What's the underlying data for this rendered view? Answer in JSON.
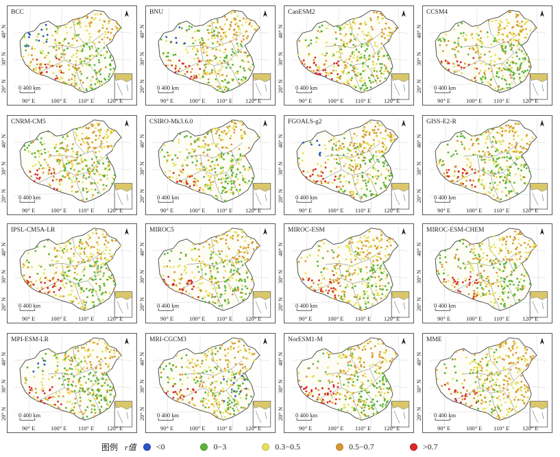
{
  "panels": [
    {
      "label": "BCC"
    },
    {
      "label": "BNU"
    },
    {
      "label": "CanESM2"
    },
    {
      "label": "CCSM4"
    },
    {
      "label": "CNRM-CM5"
    },
    {
      "label": "CSIRO-Mk3.6.0"
    },
    {
      "label": "FGOALS-g2"
    },
    {
      "label": "GISS-E2-R"
    },
    {
      "label": "IPSL-CM5A-LR"
    },
    {
      "label": "MIROC5"
    },
    {
      "label": "MIROC-ESM"
    },
    {
      "label": "MIROC-ESM-CHEM"
    },
    {
      "label": "MPI-ESM-LR"
    },
    {
      "label": "MRI-CGCM3"
    },
    {
      "label": "NorESM1-M"
    },
    {
      "label": "MME"
    }
  ],
  "axes": {
    "lat_labels": [
      "40° N",
      "30° N",
      "20° N"
    ],
    "lon_labels": [
      "90° E",
      "100° E",
      "110° E",
      "120° E"
    ],
    "scale_label": "0 400 km"
  },
  "legend": {
    "title": "图例",
    "variable": "r值",
    "items": [
      {
        "label": "<0",
        "color": "#2b55c4"
      },
      {
        "label": "0−3",
        "color": "#5bb43a"
      },
      {
        "label": "0.3−0.5",
        "color": "#e6e05a"
      },
      {
        "label": "0.5−0.7",
        "color": "#d69a33"
      },
      {
        "label": ">0.7",
        "color": "#d9282b"
      }
    ]
  },
  "colors": {
    "blue": "#2b55c4",
    "green": "#5bb43a",
    "yellow": "#e6e05a",
    "orange": "#d69a33",
    "red": "#d9282b",
    "border": "#3a3a3a"
  }
}
